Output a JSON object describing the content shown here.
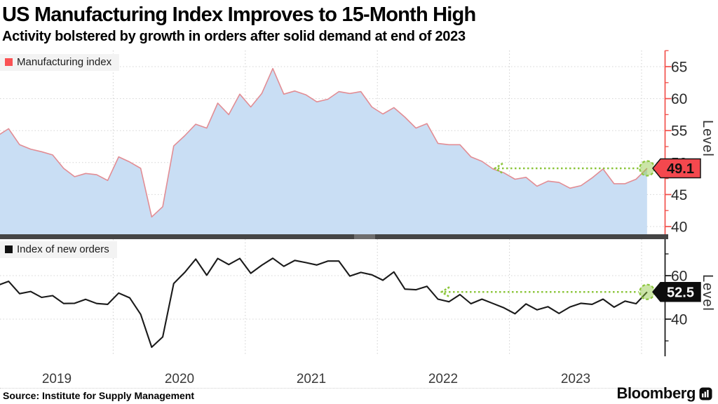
{
  "header": {
    "title": "US Manufacturing Index Improves to 15-Month High",
    "subtitle": "Activity bolstered by growth in orders after solid demand at end of 2023"
  },
  "footer": {
    "source": "Source: Institute for Supply Management",
    "brand": "Bloomberg"
  },
  "annotation_color": "#8cc63c",
  "chart_data": [
    {
      "type": "area",
      "legend": "Manufacturing index",
      "ylabel": "Level",
      "ylim": [
        38.8,
        67.2
      ],
      "yticks_labeled": [
        40,
        45,
        50,
        55,
        60,
        65
      ],
      "yticks_minor": [
        42.5,
        47.5,
        52.5,
        57.5,
        62.5,
        67.5
      ],
      "grid": true,
      "legend_position": "top-left",
      "x": {
        "unit": "month",
        "start": "2019-01",
        "end": "2024-01",
        "n": 61
      },
      "x_tick_labels": [
        "2019",
        "2020",
        "2021",
        "2022",
        "2023"
      ],
      "values": [
        56.6,
        54.2,
        55.3,
        52.8,
        52.1,
        51.7,
        51.2,
        49.1,
        47.8,
        48.3,
        48.1,
        47.2,
        50.9,
        50.1,
        49.1,
        41.5,
        43.1,
        52.6,
        54.2,
        56.0,
        55.4,
        59.3,
        57.5,
        60.7,
        58.7,
        60.8,
        64.7,
        60.7,
        61.2,
        60.6,
        59.5,
        59.9,
        61.1,
        60.8,
        61.1,
        58.7,
        57.6,
        58.6,
        57.1,
        55.4,
        56.1,
        53.0,
        52.8,
        52.8,
        50.9,
        50.2,
        49.0,
        48.4,
        47.4,
        47.7,
        46.3,
        47.1,
        46.9,
        46.0,
        46.4,
        47.6,
        49.0,
        46.7,
        46.7,
        47.4,
        49.1
      ],
      "last_value_label": "49.1",
      "annotation": {
        "kind": "lookback-arrow-to-last-point",
        "level": 49.1
      },
      "colors": {
        "line": "#e28d94",
        "fill": "#c9def4",
        "axis": "#f2504b",
        "badge_bg": "#f4484e",
        "badge_text": "#111111",
        "swatch": "#fa5254"
      }
    },
    {
      "type": "line",
      "legend": "Index of new orders",
      "ylabel": "Level",
      "ylim": [
        19,
        77
      ],
      "yticks_labeled": [
        40,
        60
      ],
      "yticks_minor": [
        30,
        50,
        70
      ],
      "grid": true,
      "legend_position": "top-left",
      "x": {
        "unit": "month",
        "start": "2019-01",
        "end": "2024-01",
        "n": 61
      },
      "x_tick_labels": [
        "2019",
        "2020",
        "2021",
        "2022",
        "2023"
      ],
      "values": [
        58.2,
        55.5,
        57.4,
        51.7,
        52.7,
        50.0,
        50.8,
        47.2,
        47.3,
        49.1,
        47.2,
        46.8,
        52.0,
        49.8,
        42.2,
        27.1,
        31.8,
        56.4,
        61.5,
        67.6,
        60.2,
        67.9,
        65.1,
        67.9,
        61.1,
        64.8,
        68.0,
        64.3,
        67.0,
        66.0,
        64.9,
        66.7,
        66.7,
        59.8,
        61.5,
        60.4,
        57.9,
        61.7,
        53.8,
        53.5,
        55.1,
        49.2,
        48.0,
        51.3,
        47.1,
        49.2,
        47.2,
        45.2,
        42.5,
        47.0,
        44.3,
        45.7,
        42.6,
        45.6,
        47.3,
        46.8,
        49.2,
        45.5,
        48.3,
        47.1,
        52.5
      ],
      "last_value_label": "52.5",
      "annotation": {
        "kind": "lookback-arrow-to-last-point",
        "level": 52.5
      },
      "colors": {
        "line": "#1a1a1a",
        "axis": "#141414",
        "badge_bg": "#0d0d0d",
        "badge_text": "#ffffff",
        "swatch": "#111111"
      }
    }
  ]
}
